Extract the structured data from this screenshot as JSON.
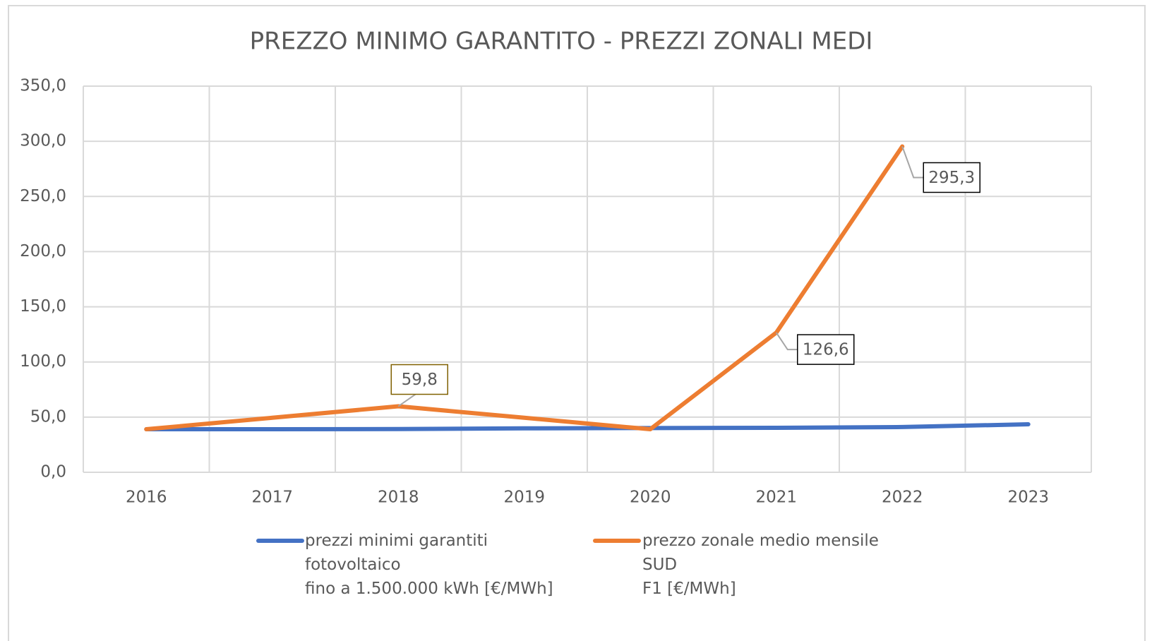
{
  "chart_data": {
    "type": "line",
    "title": "PREZZO MINIMO GARANTITO - PREZZI ZONALI MEDI",
    "categories": [
      "2016",
      "2017",
      "2018",
      "2019",
      "2020",
      "2021",
      "2022",
      "2023"
    ],
    "series": [
      {
        "name": "prezzi minimi garantiti\nfotovoltaico\nfino a 1.500.000 kWh [€/MWh]",
        "color": "#4472c4",
        "values": [
          39.0,
          39.0,
          39.2,
          39.8,
          40.1,
          40.3,
          41.0,
          43.5
        ]
      },
      {
        "name": "prezzo zonale medio mensile\n SUD\nF1 [€/MWh]",
        "color": "#ed7d31",
        "values": [
          39.0,
          49.4,
          59.8,
          49.4,
          39.0,
          126.6,
          295.3,
          null
        ],
        "value_labels": [
          null,
          null,
          "59,8",
          null,
          null,
          "126,6",
          "295,3",
          null
        ]
      }
    ],
    "ylim": [
      0,
      350
    ],
    "yticks": [
      {
        "value": 0,
        "label": "0,0"
      },
      {
        "value": 50,
        "label": "50,0"
      },
      {
        "value": 100,
        "label": "100,0"
      },
      {
        "value": 150,
        "label": "150,0"
      },
      {
        "value": 200,
        "label": "200,0"
      },
      {
        "value": 250,
        "label": "250,0"
      },
      {
        "value": 300,
        "label": "300,0"
      },
      {
        "value": 350,
        "label": "350,0"
      }
    ],
    "grid": true
  }
}
